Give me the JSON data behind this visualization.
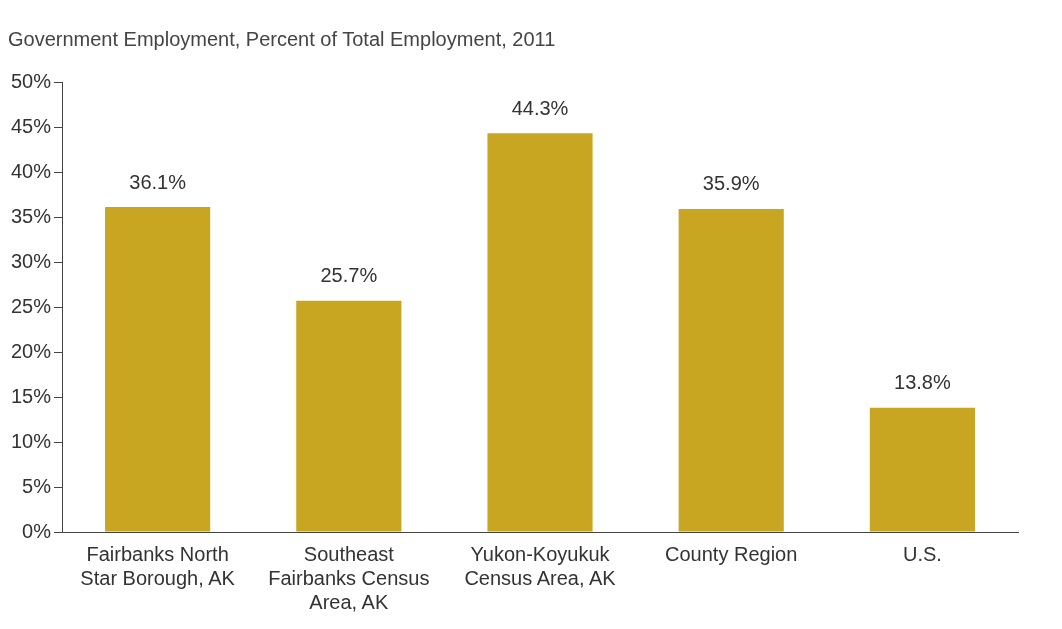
{
  "chart_data": {
    "type": "bar",
    "title": "Government Employment, Percent of Total Employment, 2011",
    "categories": [
      "Fairbanks North Star Borough, AK",
      "Southeast Fairbanks Census Area, AK",
      "Yukon-Koyukuk Census Area, AK",
      "County Region",
      "U.S."
    ],
    "values": [
      36.1,
      25.7,
      44.3,
      35.9,
      13.8
    ],
    "value_labels": [
      "36.1%",
      "25.7%",
      "44.3%",
      "35.9%",
      "13.8%"
    ],
    "color": "#c9a622",
    "ylim": [
      0,
      50
    ],
    "yticks": [
      {
        "value": 0,
        "label": "0%"
      },
      {
        "value": 5,
        "label": "5%"
      },
      {
        "value": 10,
        "label": "10%"
      },
      {
        "value": 15,
        "label": "15%"
      },
      {
        "value": 20,
        "label": "20%"
      },
      {
        "value": 25,
        "label": "25%"
      },
      {
        "value": 30,
        "label": "30%"
      },
      {
        "value": 35,
        "label": "35%"
      },
      {
        "value": 40,
        "label": "40%"
      },
      {
        "value": 45,
        "label": "45%"
      },
      {
        "value": 50,
        "label": "50%"
      }
    ],
    "grid": false,
    "legend": false
  }
}
